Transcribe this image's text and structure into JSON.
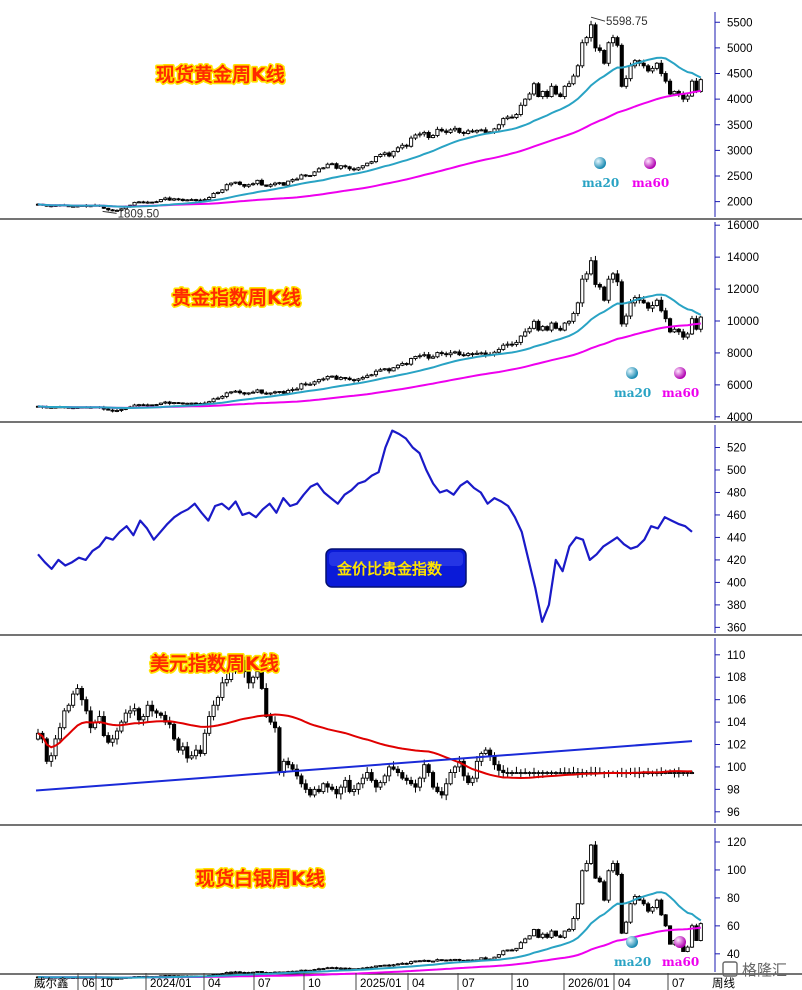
{
  "panels": [
    {
      "title": "现货黄金周K线"
    },
    {
      "title": "贵金指数周K线"
    },
    {
      "title": "金价比贵金指数"
    },
    {
      "title": "美元指数周K线"
    },
    {
      "title": "现货白银周K线"
    }
  ],
  "legend": {
    "ma20": "ma20",
    "ma60": "ma60"
  },
  "x_axis": {
    "ticks": [
      "06",
      "10",
      "2024/01",
      "04",
      "07",
      "10",
      "2025/01",
      "04",
      "07",
      "10",
      "2026/01",
      "04",
      "07"
    ],
    "period_label": "周线",
    "left_label": "威尔鑫"
  },
  "watermark": "格隆汇",
  "colors": {
    "ma20": "#29a3c4",
    "ma60": "#ee00ee",
    "candle": "#000000",
    "ratio_line": "#1a1ac8",
    "usd_ma_red": "#e00000",
    "usd_ma_blue": "#1a2ad8",
    "title_fill": "#ff2a00",
    "title_stroke": "#ffe400",
    "axis": "#1a1ab0"
  },
  "chart_data": [
    {
      "type": "candlestick",
      "title": "现货黄金周K线",
      "annotations": [
        {
          "label": "5598.75",
          "x": "2026/01",
          "y": 5598.75
        },
        {
          "label": "1809.50",
          "x": "2023/10",
          "y": 1809.5
        }
      ],
      "y_ticks": [
        2000,
        2500,
        3000,
        3500,
        4000,
        4500,
        5000,
        5500
      ],
      "ylim": [
        1700,
        5700
      ],
      "x_start": "2023/06",
      "close": [
        1950,
        1930,
        1920,
        1915,
        1925,
        1935,
        1920,
        1910,
        1905,
        1915,
        1925,
        1910,
        1920,
        1930,
        1915,
        1870,
        1840,
        1820,
        1830,
        1860,
        1910,
        1930,
        1985,
        1995,
        1980,
        1990,
        1985,
        2000,
        2040,
        2070,
        2030,
        2055,
        2045,
        2020,
        2035,
        2040,
        2030,
        2025,
        2040,
        2080,
        2160,
        2180,
        2230,
        2330,
        2360,
        2380,
        2335,
        2300,
        2330,
        2350,
        2415,
        2325,
        2300,
        2330,
        2360,
        2370,
        2320,
        2400,
        2430,
        2440,
        2520,
        2500,
        2510,
        2580,
        2640,
        2660,
        2730,
        2740,
        2650,
        2700,
        2680,
        2640,
        2620,
        2660,
        2700,
        2750,
        2780,
        2880,
        2920,
        2950,
        2890,
        2980,
        3050,
        3100,
        3080,
        3240,
        3300,
        3320,
        3350,
        3250,
        3290,
        3410,
        3380,
        3350,
        3400,
        3430,
        3350,
        3330,
        3380,
        3360,
        3390,
        3400,
        3350,
        3360,
        3420,
        3500,
        3620,
        3650,
        3640,
        3700,
        3880,
        4000,
        4100,
        4300,
        4050,
        4150,
        4050,
        4250,
        4100,
        4050,
        4250,
        4300,
        4450,
        4650,
        5100,
        5200,
        5450,
        5000,
        4950,
        4700,
        5100,
        5200,
        5050,
        4250,
        4400,
        4650,
        4750,
        4700,
        4650,
        4550,
        4600,
        4700,
        4500,
        4350,
        4100,
        4150,
        4100,
        4000,
        4060,
        4350,
        4150,
        4380
      ],
      "ma20_end": 4400,
      "ma60_end": 4220
    },
    {
      "type": "candlestick",
      "title": "贵金指数周K线",
      "y_ticks": [
        4000,
        6000,
        8000,
        10000,
        12000,
        14000,
        16000
      ],
      "ylim": [
        3800,
        16200
      ],
      "close_scale": "approx gold*2.2 in trend",
      "ma20_end": 10100,
      "ma60_end": 9500
    },
    {
      "type": "line",
      "title": "金价比贵金指数",
      "y_ticks": [
        360,
        380,
        400,
        420,
        440,
        460,
        480,
        500,
        520
      ],
      "ylim": [
        355,
        540
      ],
      "values": [
        425,
        418,
        412,
        420,
        415,
        418,
        422,
        420,
        428,
        432,
        440,
        438,
        445,
        450,
        442,
        455,
        448,
        438,
        445,
        452,
        458,
        462,
        465,
        470,
        462,
        455,
        468,
        470,
        465,
        472,
        460,
        462,
        458,
        465,
        470,
        462,
        475,
        468,
        470,
        478,
        485,
        488,
        480,
        475,
        470,
        478,
        482,
        488,
        490,
        495,
        498,
        520,
        535,
        532,
        528,
        520,
        515,
        500,
        488,
        480,
        482,
        478,
        486,
        490,
        484,
        480,
        470,
        475,
        472,
        468,
        458,
        445,
        420,
        395,
        365,
        380,
        420,
        410,
        432,
        440,
        438,
        420,
        425,
        432,
        436,
        440,
        434,
        430,
        432,
        438,
        450,
        448,
        458,
        455,
        452,
        450,
        445
      ]
    },
    {
      "type": "candlestick",
      "title": "美元指数周K线",
      "y_ticks": [
        96,
        98,
        100,
        102,
        104,
        106,
        108,
        110
      ],
      "ylim": [
        95,
        111.5
      ],
      "close": [
        103,
        102.5,
        100.5,
        101,
        102.5,
        103.5,
        105,
        105.5,
        106.5,
        107,
        106,
        105,
        103.5,
        104,
        104.5,
        102.8,
        102.2,
        102.5,
        103.2,
        104,
        104.8,
        105,
        105.2,
        104.2,
        104.5,
        105.5,
        105,
        104.8,
        104.6,
        104,
        103.8,
        102.5,
        101.5,
        101.8,
        100.8,
        101,
        101.5,
        101.2,
        103,
        104.5,
        105.5,
        106.2,
        107.5,
        107.8,
        108.5,
        109,
        109.5,
        108.5,
        107.5,
        108,
        108.5,
        107,
        104.5,
        104,
        103.5,
        99.5,
        100.5,
        100.2,
        99.8,
        99.2,
        98.5,
        98,
        97.5,
        98,
        97.8,
        98.5,
        98.2,
        98,
        97.6,
        98.2,
        98.8,
        97.8,
        98,
        98.5,
        99,
        99.5,
        98.8,
        98.2,
        98.6,
        99.2,
        100,
        99.8,
        99.5,
        99,
        98.8,
        98.5,
        98.2,
        99,
        100.2,
        99.5,
        98.2,
        97.8,
        97.5,
        98.5,
        99.5,
        100,
        100.5,
        99.2,
        98.6,
        99,
        100.5,
        101.2,
        101.5,
        101,
        100.2,
        99.7,
        99.5
      ],
      "ma_red_end": 101.5,
      "ma_blue_end": 102.3
    },
    {
      "type": "candlestick",
      "title": "现货白银周K线",
      "y_ticks": [
        40,
        60,
        80,
        100,
        120
      ],
      "ylim": [
        27,
        130
      ],
      "ma20_end": 70,
      "ma60_end": 63
    }
  ]
}
